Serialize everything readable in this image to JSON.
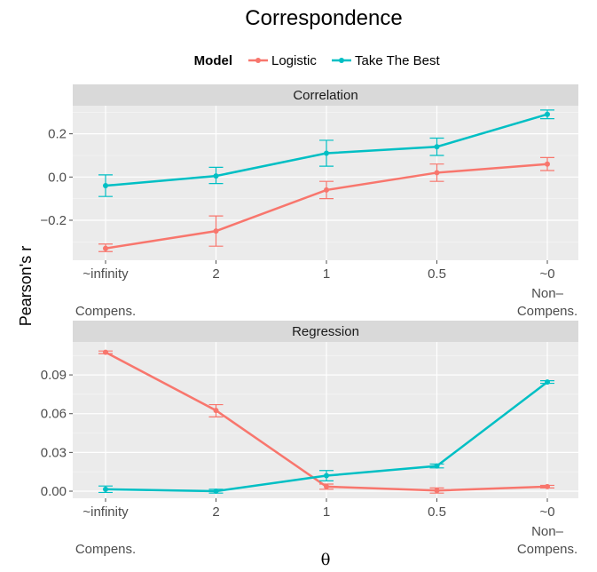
{
  "chart_data": {
    "type": "line",
    "title": "Correspondence",
    "legend": {
      "title": "Model",
      "placement": "top",
      "entries": [
        {
          "name": "Logistic",
          "color": "#F8766D"
        },
        {
          "name": "Take The Best",
          "color": "#00BFC4"
        }
      ]
    },
    "xlabel": "θ",
    "ylabel": "Pearson's r",
    "x_categories": [
      "~infinity",
      "2",
      "1",
      "0.5",
      "~0"
    ],
    "x_sublabels": {
      "left": "Compens.",
      "right_line1": "Non–",
      "right_line2": "Compens."
    },
    "grid": true,
    "panels": [
      {
        "name": "Correlation",
        "ylim": [
          -0.385,
          0.33
        ],
        "yticks": [
          {
            "value": -0.2,
            "label": "−0.2"
          },
          {
            "value": 0.0,
            "label": "0.0"
          },
          {
            "value": 0.2,
            "label": "0.2"
          }
        ],
        "series": [
          {
            "name": "Logistic",
            "values": [
              -0.33,
              -0.25,
              -0.06,
              0.02,
              0.06
            ],
            "err_low": [
              -0.345,
              -0.32,
              -0.1,
              -0.02,
              0.03
            ],
            "err_high": [
              -0.31,
              -0.18,
              -0.02,
              0.06,
              0.09
            ]
          },
          {
            "name": "Take The Best",
            "values": [
              -0.04,
              0.005,
              0.11,
              0.14,
              0.29
            ],
            "err_low": [
              -0.09,
              -0.03,
              0.05,
              0.1,
              0.27
            ],
            "err_high": [
              0.01,
              0.045,
              0.17,
              0.18,
              0.31
            ]
          }
        ]
      },
      {
        "name": "Regression",
        "ylim": [
          -0.0055,
          0.1155
        ],
        "yticks": [
          {
            "value": 0.0,
            "label": "0.00"
          },
          {
            "value": 0.03,
            "label": "0.03"
          },
          {
            "value": 0.06,
            "label": "0.06"
          },
          {
            "value": 0.09,
            "label": "0.09"
          }
        ],
        "series": [
          {
            "name": "Logistic",
            "values": [
              0.1075,
              0.0625,
              0.0035,
              0.0005,
              0.0035
            ],
            "err_low": [
              0.1065,
              0.0575,
              0.0015,
              -0.0015,
              0.0025
            ],
            "err_high": [
              0.1085,
              0.067,
              0.0055,
              0.0025,
              0.0045
            ]
          },
          {
            "name": "Take The Best",
            "values": [
              0.0015,
              0.0,
              0.012,
              0.0195,
              0.0845
            ],
            "err_low": [
              -0.001,
              -0.0015,
              0.008,
              0.018,
              0.0835
            ],
            "err_high": [
              0.004,
              0.0015,
              0.016,
              0.021,
              0.0855
            ]
          }
        ]
      }
    ]
  }
}
